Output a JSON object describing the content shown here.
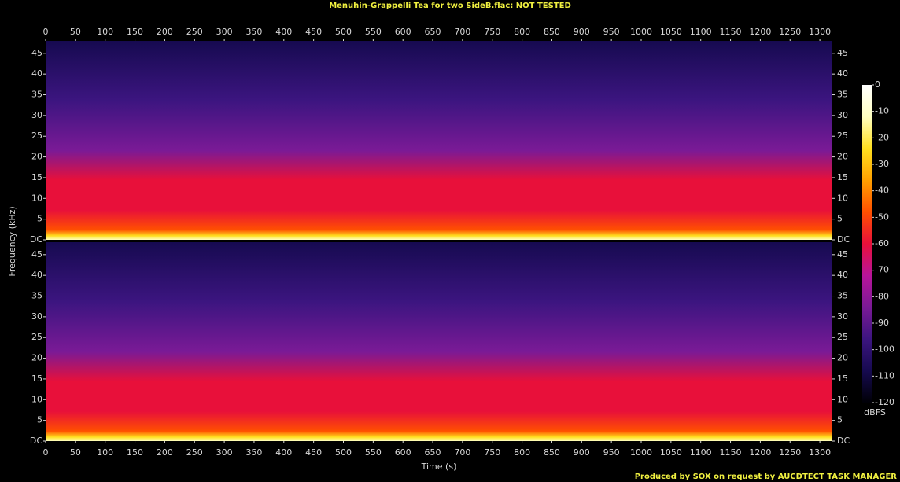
{
  "chart_data": {
    "type": "spectrogram",
    "title": "Menuhin-Grappelli Tea for two SideB.flac: NOT TESTED",
    "x_label": "Time (s)",
    "y_label": "Frequency (kHz)",
    "xlim": [
      0,
      1321
    ],
    "xticks": [
      0,
      50,
      100,
      150,
      200,
      250,
      300,
      350,
      400,
      450,
      500,
      550,
      600,
      650,
      700,
      750,
      800,
      850,
      900,
      950,
      1000,
      1050,
      1100,
      1150,
      1200,
      1250,
      1300
    ],
    "ylim": [
      0,
      48
    ],
    "yticks": [
      {
        "value": 0,
        "label": "DC"
      },
      5,
      10,
      15,
      20,
      25,
      30,
      35,
      40,
      45
    ],
    "zlim": [
      -120,
      0
    ],
    "zticks": [
      0,
      -10,
      -20,
      -30,
      -40,
      -50,
      -60,
      -70,
      -80,
      -90,
      -100,
      -110,
      -120
    ],
    "z_label": "dBFS",
    "colormap": [
      "#000006",
      "#160a50",
      "#3c1580",
      "#7a1a96",
      "#b8149a",
      "#e8103a",
      "#ff5000",
      "#ffa000",
      "#ffe020",
      "#ffffc0",
      "#ffffff"
    ],
    "footer": "Produced by SOX on request by AUCDTECT TASK MANAGER"
  }
}
